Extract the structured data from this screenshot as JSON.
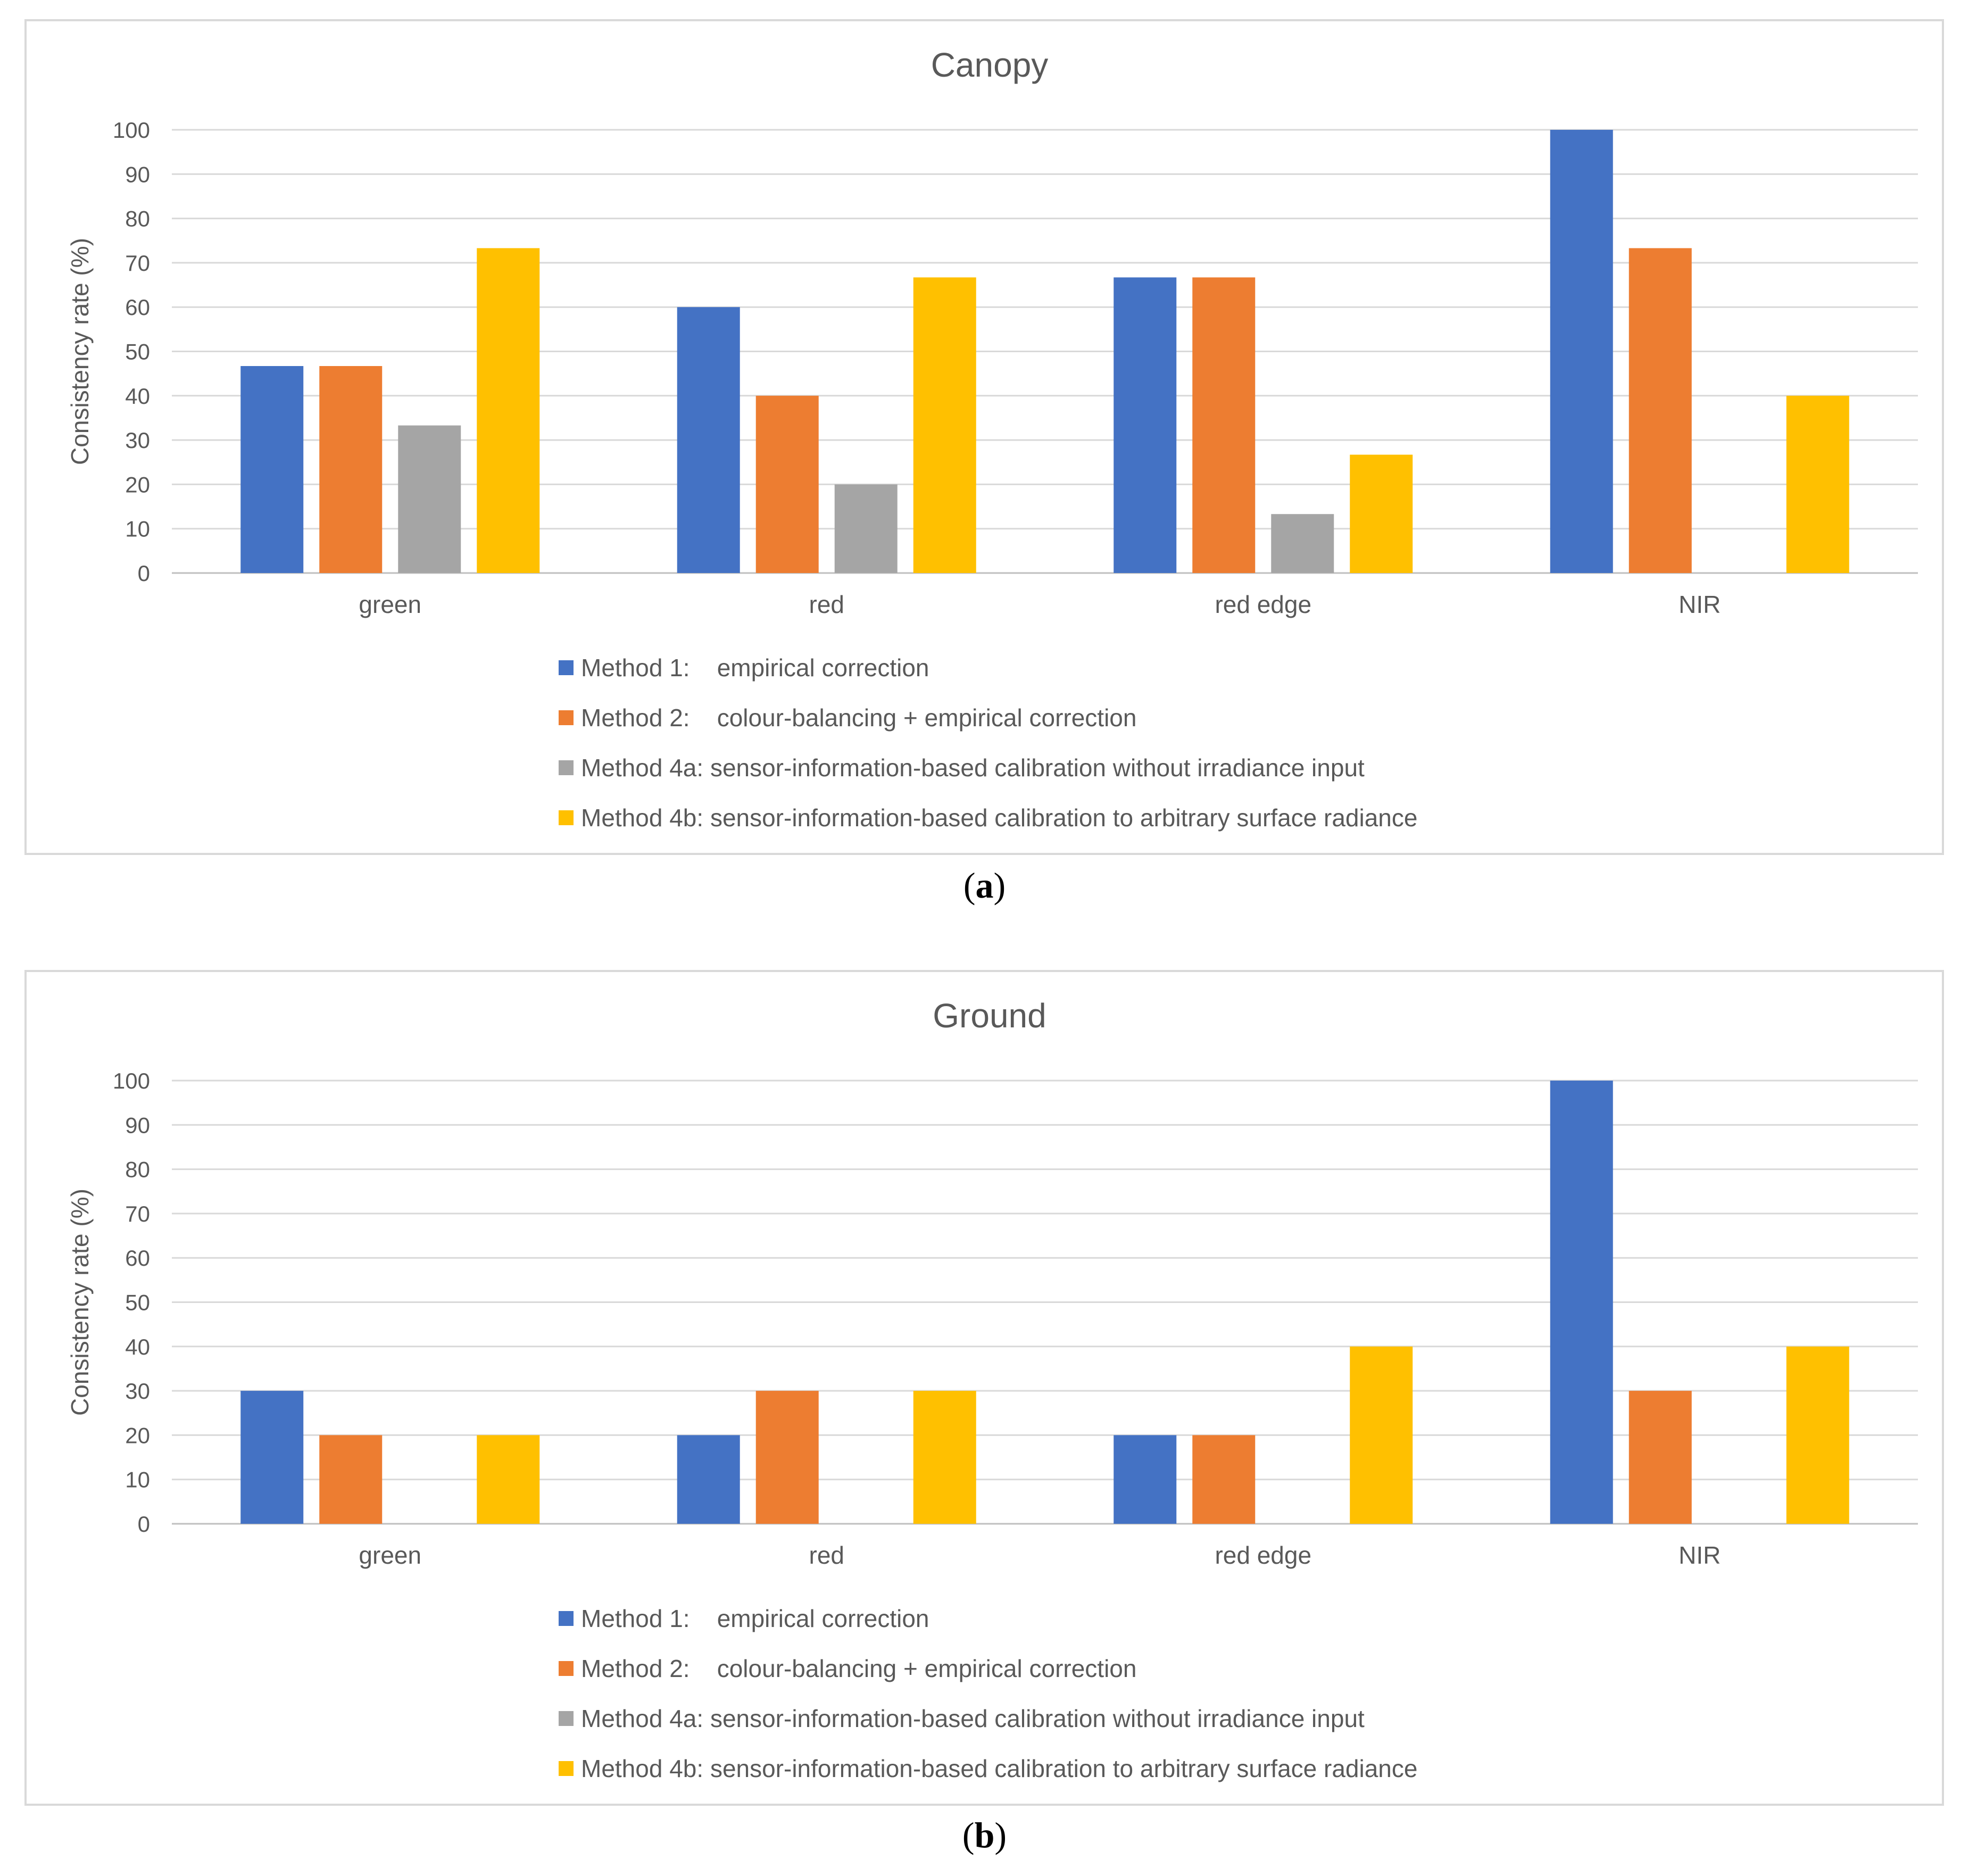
{
  "chart_data": [
    {
      "type": "bar",
      "title": "Canopy",
      "ylabel": "Consistency rate (%)",
      "xlabel": "",
      "ylim": [
        0,
        100
      ],
      "yticks": [
        0,
        10,
        20,
        30,
        40,
        50,
        60,
        70,
        80,
        90,
        100
      ],
      "grid": true,
      "legend_position": "bottom",
      "categories": [
        "green",
        "red",
        "red edge",
        "NIR"
      ],
      "series": [
        {
          "name": "Method 1:    empirical correction",
          "color": "#4472C4",
          "values": [
            46.7,
            60,
            66.7,
            100
          ]
        },
        {
          "name": "Method 2:    colour-balancing + empirical correction",
          "color": "#ED7D31",
          "values": [
            46.7,
            40,
            66.7,
            73.3
          ]
        },
        {
          "name": "Method 4a: sensor-information-based calibration without irradiance input",
          "color": "#A5A5A5",
          "values": [
            33.3,
            20,
            13.3,
            0
          ]
        },
        {
          "name": "Method 4b: sensor-information-based calibration to arbitrary surface radiance",
          "color": "#FFC000",
          "values": [
            73.3,
            66.7,
            26.7,
            40
          ]
        }
      ]
    },
    {
      "type": "bar",
      "title": "Ground",
      "ylabel": "Consistency rate (%)",
      "xlabel": "",
      "ylim": [
        0,
        100
      ],
      "yticks": [
        0,
        10,
        20,
        30,
        40,
        50,
        60,
        70,
        80,
        90,
        100
      ],
      "grid": true,
      "legend_position": "bottom",
      "categories": [
        "green",
        "red",
        "red edge",
        "NIR"
      ],
      "series": [
        {
          "name": "Method 1:    empirical correction",
          "color": "#4472C4",
          "values": [
            30,
            20,
            20,
            100
          ]
        },
        {
          "name": "Method 2:    colour-balancing + empirical correction",
          "color": "#ED7D31",
          "values": [
            20,
            30,
            20,
            30
          ]
        },
        {
          "name": "Method 4a: sensor-information-based calibration without irradiance input",
          "color": "#A5A5A5",
          "values": [
            0,
            0,
            0,
            0
          ]
        },
        {
          "name": "Method 4b: sensor-information-based calibration to arbitrary surface radiance",
          "color": "#FFC000",
          "values": [
            20,
            30,
            40,
            40
          ]
        }
      ]
    }
  ],
  "captions": [
    {
      "letter": "a",
      "open": "(",
      "close": ")"
    },
    {
      "letter": "b",
      "open": "(",
      "close": ")"
    }
  ]
}
